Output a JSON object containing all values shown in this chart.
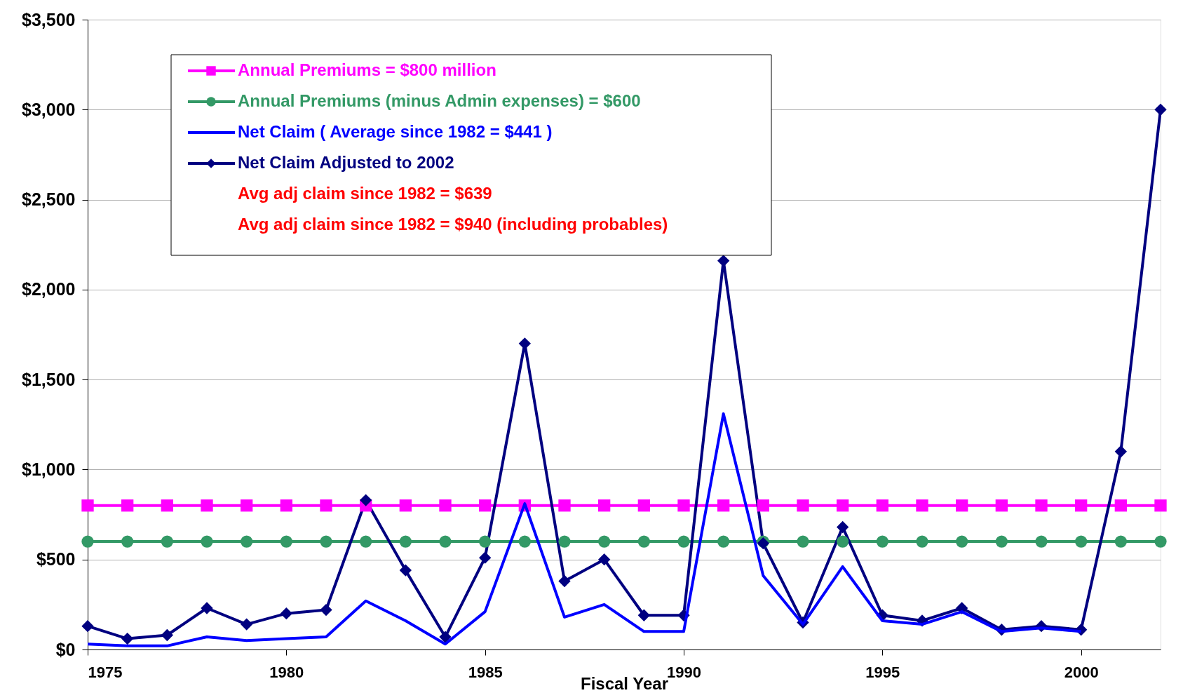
{
  "chart_data": {
    "type": "line",
    "xlabel": "Fiscal Year",
    "x": [
      1975,
      1976,
      1977,
      1978,
      1979,
      1980,
      1981,
      1982,
      1983,
      1984,
      1985,
      1986,
      1987,
      1988,
      1989,
      1990,
      1991,
      1992,
      1993,
      1994,
      1995,
      1996,
      1997,
      1998,
      1999,
      2000,
      2001,
      2002
    ],
    "series": [
      {
        "name": "Annual Premiums = $800  million",
        "color": "#ff00ff",
        "marker": "square",
        "values": [
          800,
          800,
          800,
          800,
          800,
          800,
          800,
          800,
          800,
          800,
          800,
          800,
          800,
          800,
          800,
          800,
          800,
          800,
          800,
          800,
          800,
          800,
          800,
          800,
          800,
          800,
          800,
          800
        ]
      },
      {
        "name": "Annual Premiums (minus Admin expenses) =  $600",
        "color": "#339966",
        "marker": "circle",
        "values": [
          600,
          600,
          600,
          600,
          600,
          600,
          600,
          600,
          600,
          600,
          600,
          600,
          600,
          600,
          600,
          600,
          600,
          600,
          600,
          600,
          600,
          600,
          600,
          600,
          600,
          600,
          600,
          600
        ]
      },
      {
        "name": "Net Claim  ( Average since 1982 =  $441  )",
        "color": "#0000ff",
        "marker": "none",
        "values": [
          30,
          20,
          20,
          70,
          50,
          60,
          70,
          270,
          160,
          30,
          210,
          810,
          180,
          250,
          100,
          100,
          1310,
          410,
          140,
          460,
          160,
          140,
          210,
          100,
          120,
          100,
          null,
          null
        ]
      },
      {
        "name": "Net Claim  Adjusted to 2002",
        "color": "#000080",
        "marker": "diamond",
        "values": [
          130,
          60,
          80,
          230,
          140,
          200,
          220,
          830,
          440,
          70,
          510,
          1700,
          380,
          500,
          190,
          190,
          2160,
          590,
          150,
          680,
          190,
          160,
          230,
          110,
          130,
          110,
          1100,
          3000
        ]
      }
    ],
    "annotations": [
      "Avg adj claim since 1982 = $639",
      "Avg adj claim since 1982 = $940 (including probables)"
    ],
    "xlim": [
      1975,
      2002
    ],
    "xticks": [
      1975,
      1980,
      1985,
      1990,
      1995,
      2000
    ],
    "ylim": [
      0,
      3500
    ],
    "yticks": [
      {
        "value": 0,
        "label": "$0"
      },
      {
        "value": 500,
        "label": "$500"
      },
      {
        "value": 1000,
        "label": "$1,000"
      },
      {
        "value": 1500,
        "label": "$1,500"
      },
      {
        "value": 2000,
        "label": "$2,000"
      },
      {
        "value": 2500,
        "label": "$2,500"
      },
      {
        "value": 3000,
        "label": "$3,000"
      },
      {
        "value": 3500,
        "label": "$3,500"
      }
    ],
    "grid": "y",
    "legend": "top left"
  }
}
